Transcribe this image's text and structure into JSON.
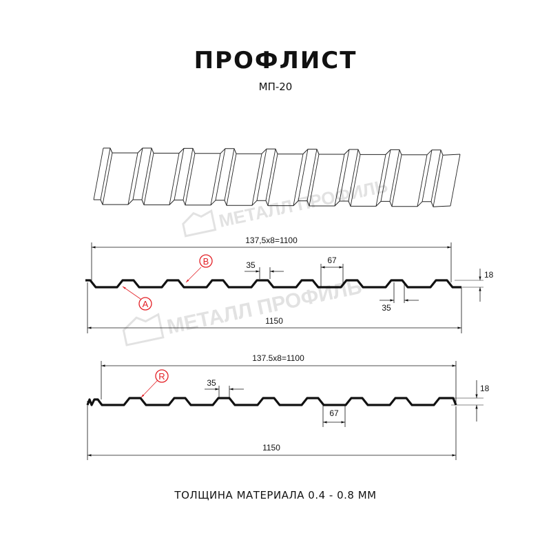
{
  "header": {
    "title": "ПРОФЛИСТ",
    "subtitle": "МП-20"
  },
  "watermark": "МЕТАЛЛ ПРОФИЛЬ",
  "profile_a": {
    "pitch_label": "137,5x8=1100",
    "width_label": "1150",
    "top_label": "35",
    "bottom_label": "35",
    "rib_label": "67",
    "height_label": "18",
    "marker_a": "A",
    "marker_b": "B"
  },
  "profile_b": {
    "pitch_label": "137.5x8=1100",
    "width_label": "1150",
    "top_label": "35",
    "rib_label": "67",
    "height_label": "18",
    "marker_r": "R"
  },
  "footer": {
    "thickness": "ТОЛЩИНА МАТЕРИАЛА 0.4 - 0.8 ММ"
  },
  "colors": {
    "line": "#111111",
    "marker": "#e31e24",
    "watermark": "#e2e2e2"
  }
}
